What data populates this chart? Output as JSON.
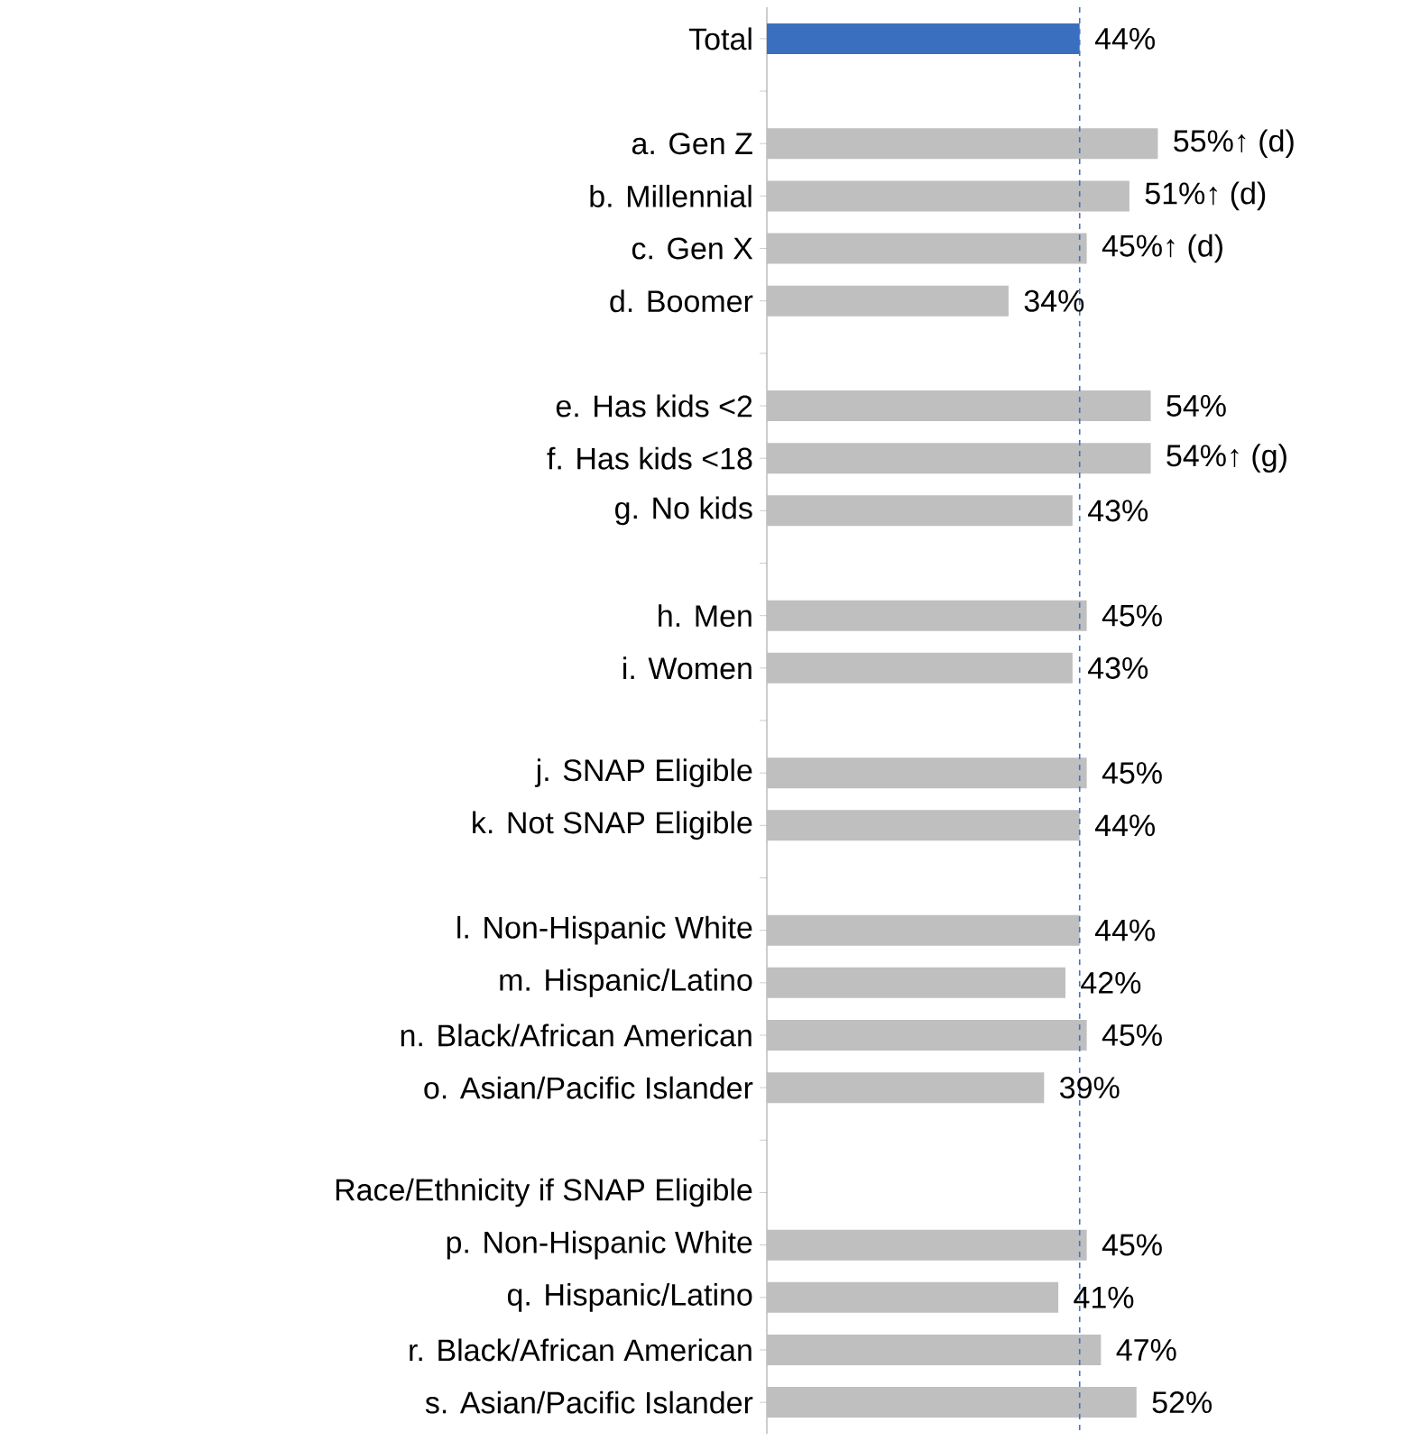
{
  "chart_data": {
    "type": "bar",
    "orientation": "horizontal",
    "categories": [
      "Total",
      null,
      "a. Gen Z",
      "b. Millennial",
      "c. Gen X",
      "d. Boomer",
      null,
      "e. Has kids <2",
      "f. Has kids <18",
      "g. No kids",
      null,
      "h. Men",
      "i. Women",
      null,
      "j. SNAP Eligible",
      "k. Not SNAP Eligible",
      null,
      "l. Non-Hispanic White",
      "m. Hispanic/Latino",
      "n. Black/African American",
      "o. Asian/Pacific Islander",
      null,
      "Race/Ethnicity if SNAP Eligible",
      "p. Non-Hispanic White",
      "q. Hispanic/Latino",
      "r. Black/African American",
      "s. Asian/Pacific Islander"
    ],
    "values": [
      44,
      null,
      55,
      51,
      45,
      34,
      null,
      54,
      54,
      43,
      null,
      45,
      43,
      null,
      45,
      44,
      null,
      44,
      42,
      45,
      39,
      null,
      null,
      45,
      41,
      47,
      52
    ],
    "value_labels": [
      "44%",
      null,
      "55%↑ (d)",
      "51%↑ (d)",
      "45%↑ (d)",
      "34%",
      null,
      "54%",
      "54%↑ (g)",
      "43%",
      null,
      "45%",
      "43%",
      null,
      "45%",
      "44%",
      null,
      "44%",
      "42%",
      "45%",
      "39%",
      null,
      null,
      "45%",
      "41%",
      "47%",
      "52%"
    ],
    "colors": [
      "#3a6fc0",
      null,
      "#bfbfbf",
      "#bfbfbf",
      "#bfbfbf",
      "#bfbfbf",
      null,
      "#bfbfbf",
      "#bfbfbf",
      "#bfbfbf",
      null,
      "#bfbfbf",
      "#bfbfbf",
      null,
      "#bfbfbf",
      "#bfbfbf",
      null,
      "#bfbfbf",
      "#bfbfbf",
      "#bfbfbf",
      "#bfbfbf",
      null,
      null,
      "#bfbfbf",
      "#bfbfbf",
      "#bfbfbf",
      "#bfbfbf"
    ],
    "ref_lines": [
      {
        "axis": "x",
        "value": 44,
        "color": "#4472c4",
        "line_style": "dashed"
      }
    ]
  }
}
